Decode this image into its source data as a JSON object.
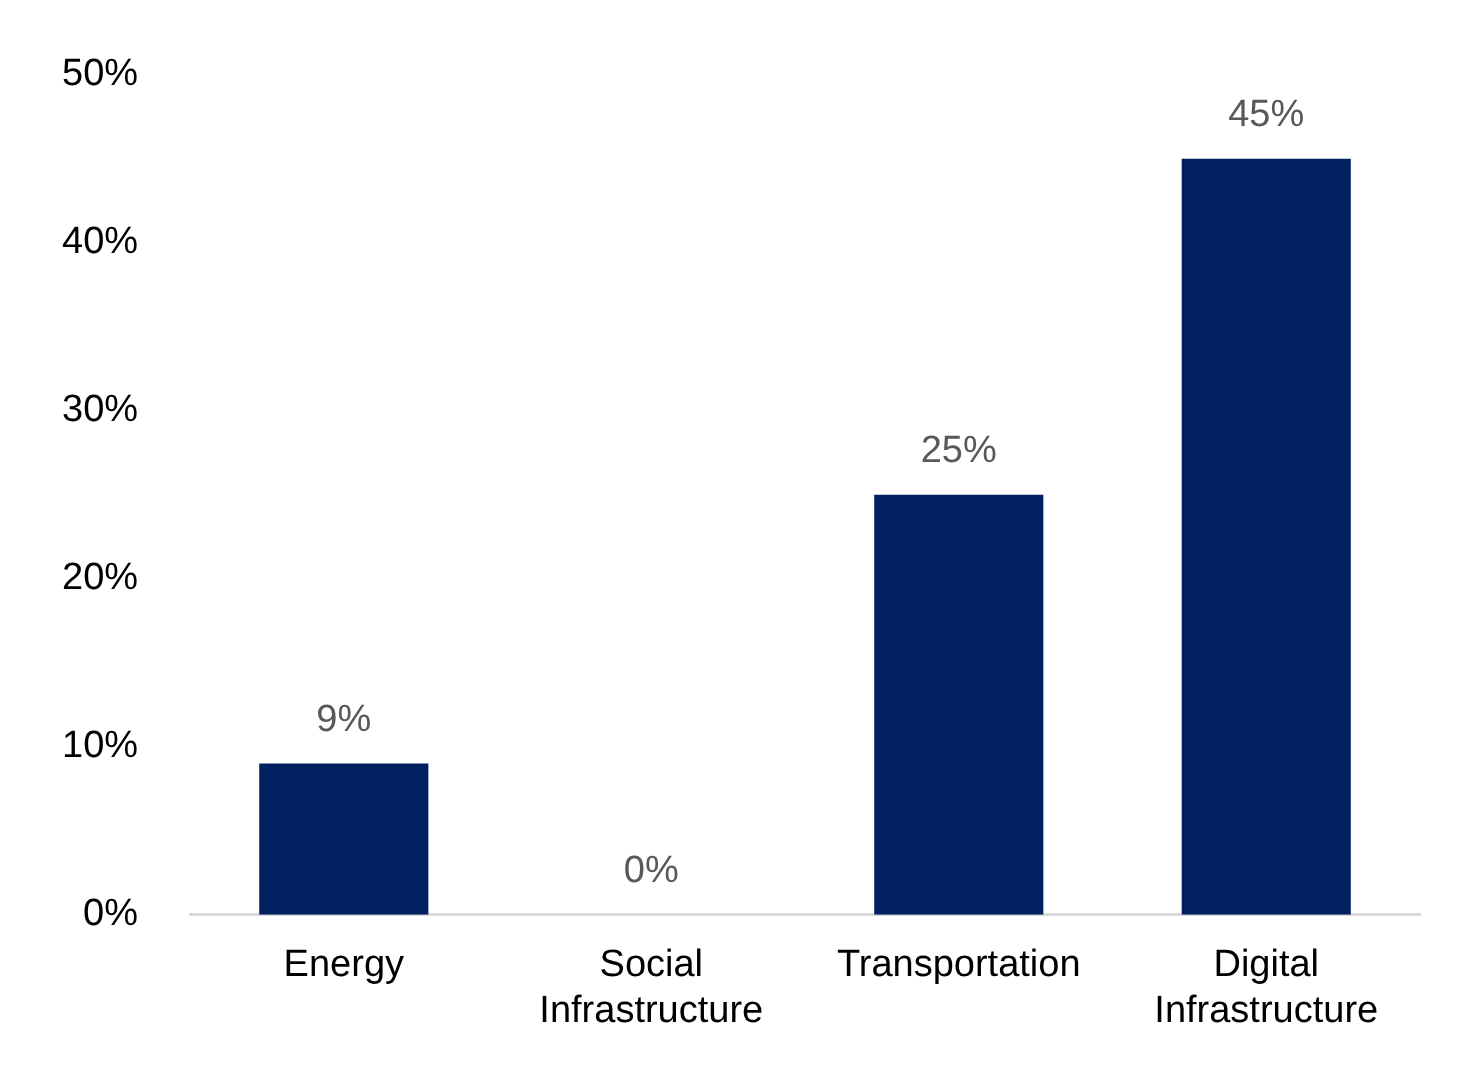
{
  "chart_data": {
    "type": "bar",
    "categories": [
      "Energy",
      "Social Infrastructure",
      "Transportation",
      "Digital Infrastructure"
    ],
    "values": [
      9,
      0,
      25,
      45
    ],
    "value_labels": [
      "9%",
      "0%",
      "25%",
      "45%"
    ],
    "color": "#002060",
    "ylim": [
      0,
      50
    ],
    "yticks": [
      {
        "value": 0,
        "label": "0%"
      },
      {
        "value": 10,
        "label": "10%"
      },
      {
        "value": 20,
        "label": "20%"
      },
      {
        "value": 30,
        "label": "30%"
      },
      {
        "value": 40,
        "label": "40%"
      },
      {
        "value": 50,
        "label": "50%"
      }
    ],
    "grid": false,
    "legend": false
  }
}
